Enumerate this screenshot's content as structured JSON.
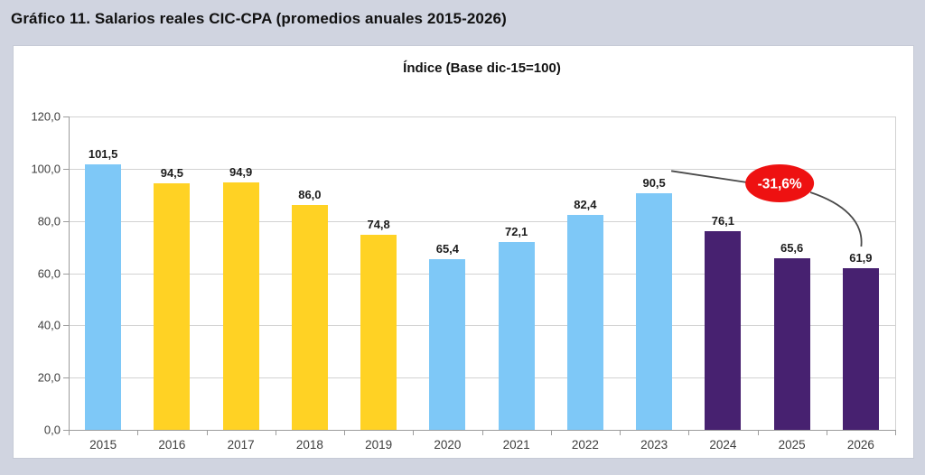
{
  "page_title": "Gráfico 11. Salarios reales CIC-CPA (promedios anuales 2015-2026)",
  "colors": {
    "page_background": "#d0d4e0",
    "panel_background": "#ffffff",
    "bar_blue": "#7ec8f7",
    "bar_yellow": "#ffd224",
    "bar_purple": "#472170",
    "annotation_red": "#ee1111",
    "gridline": "#d2d2d2",
    "axis": "#9c9c9c"
  },
  "chart_data": {
    "type": "bar",
    "title": "Índice (Base dic-15=100)",
    "categories": [
      "2015",
      "2016",
      "2017",
      "2018",
      "2019",
      "2020",
      "2021",
      "2022",
      "2023",
      "2024",
      "2025",
      "2026"
    ],
    "values": [
      101.5,
      94.5,
      94.9,
      86.0,
      74.8,
      65.4,
      72.1,
      82.4,
      90.5,
      76.1,
      65.6,
      61.9
    ],
    "bar_colors": [
      "#7ec8f7",
      "#ffd224",
      "#ffd224",
      "#ffd224",
      "#ffd224",
      "#7ec8f7",
      "#7ec8f7",
      "#7ec8f7",
      "#7ec8f7",
      "#472170",
      "#472170",
      "#472170"
    ],
    "xlabel": "",
    "ylabel": "",
    "ylim": [
      0,
      120
    ],
    "ytick_step": 20,
    "decimal_separator": ",",
    "grid": true,
    "legend": false,
    "annotation": {
      "text": "-31,6%",
      "shape": "ellipse",
      "fill": "#ee1111",
      "text_color": "#ffffff",
      "line_color": "#4a4a4a",
      "connects_from_category": "2023",
      "connects_from_value": 90.5,
      "connects_to_category": "2026",
      "connects_to_value": 61.9
    }
  }
}
